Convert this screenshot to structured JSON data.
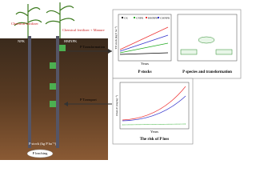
{
  "left": {
    "chemical_fertilizer": "Chemical fertilizer",
    "chemical_manure": "Chemical fertilizer + Manure",
    "npk": "NPK",
    "hmnpk": "HMNPK",
    "p_stock_axis": "P stock (kg P ha⁻¹)",
    "p_leaching": "P leaching"
  },
  "arrows": {
    "transformation": "P Transformation",
    "transport": "P Transport"
  },
  "panels": {
    "p_stocks": {
      "caption": "P stocks",
      "x_label": "Years",
      "y_label": "TP stock (kg P ha⁻¹)",
      "legend": [
        "CK",
        "CNPK",
        "HMNPK",
        "CMNPK"
      ]
    },
    "p_species": {
      "caption": "P species and transformation"
    },
    "p_loss": {
      "caption": "The risk of P loss",
      "x_label": "Years",
      "y_label": "Olsen-P (mg kg⁻¹)"
    }
  }
}
